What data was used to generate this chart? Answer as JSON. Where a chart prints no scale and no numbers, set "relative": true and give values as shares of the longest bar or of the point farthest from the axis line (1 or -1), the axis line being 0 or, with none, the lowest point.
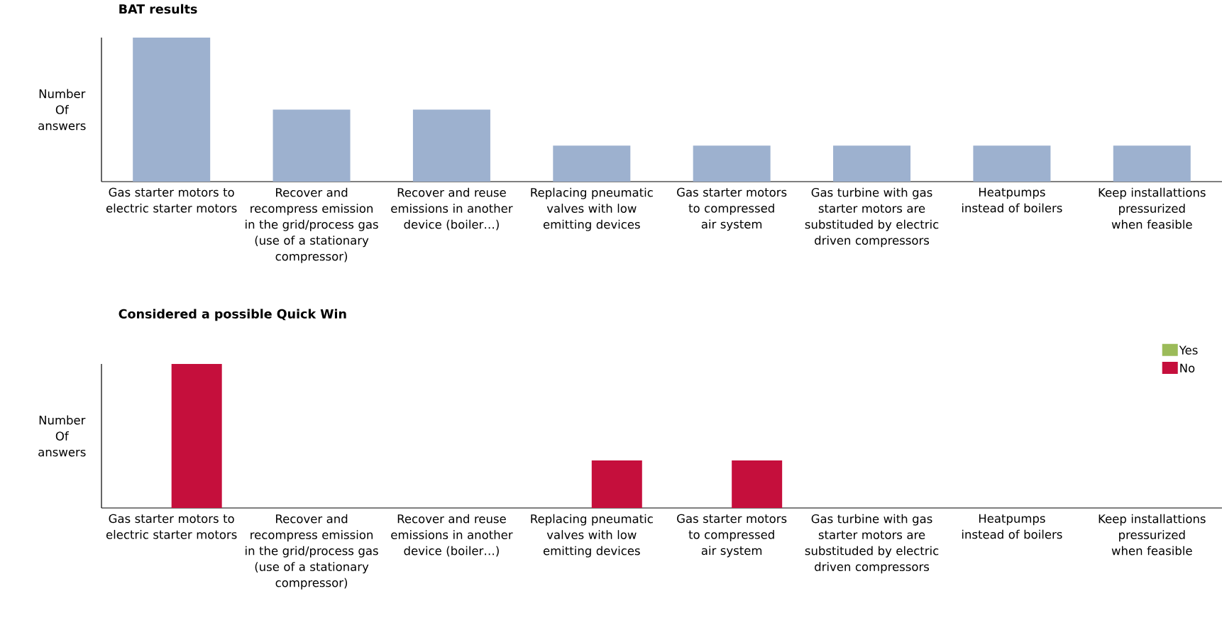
{
  "chart_data": [
    {
      "type": "bar",
      "title": "BAT results",
      "ylabel": "Number Of answers",
      "relative": true,
      "categories": [
        "Gas starter motors to electric starter motors",
        "Recover and recompress emission in the grid/process gas (use of a stationary compressor)",
        "Recover and reuse emissions in another device (boiler…)",
        "Replacing pneumatic valves with low emitting devices",
        "Gas starter motors to compressed air system",
        "Gas turbine with gas starter motors are substituded by electric driven compressors",
        "Heatpumps instead of boilers",
        "Keep installattions pressurized when feasible"
      ],
      "series": [
        {
          "color": "#9db1cf",
          "values": [
            1,
            0.5,
            0.5,
            0.25,
            0.25,
            0.25,
            0.25,
            0.25
          ]
        }
      ]
    },
    {
      "type": "bar",
      "title": "Considered a possible Quick Win",
      "ylabel": "Number Of answers",
      "relative": true,
      "legend": "top right",
      "categories": [
        "Gas starter motors to electric starter motors",
        "Recover and recompress emission in the grid/process gas (use of a stationary compressor)",
        "Recover and reuse emissions in another device (boiler…)",
        "Replacing pneumatic valves with low emitting devices",
        "Gas starter motors to compressed air system",
        "Gas turbine with gas starter motors are substituded by electric driven compressors",
        "Heatpumps instead of boilers",
        "Keep installattions pressurized when feasible"
      ],
      "series": [
        {
          "name": "Yes",
          "color": "#9bbb59",
          "values": [
            0,
            0,
            0,
            0,
            0,
            0,
            0,
            0
          ]
        },
        {
          "name": "No",
          "color": "#c50f3c",
          "values": [
            1,
            0,
            0,
            0.33,
            0.33,
            0,
            0,
            0
          ]
        }
      ]
    }
  ]
}
